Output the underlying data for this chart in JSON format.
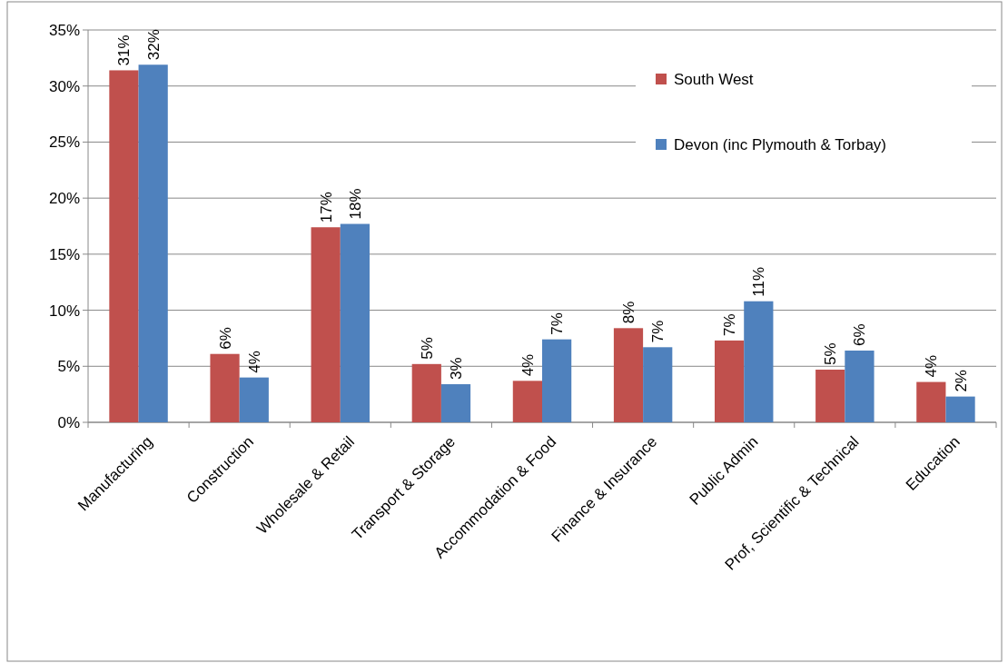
{
  "chart_data": {
    "type": "bar",
    "categories": [
      "Manufacturing",
      "Construction",
      "Wholesale & Retail",
      "Transport & Storage",
      "Accommodation & Food",
      "Finance & Insurance",
      "Public Admin",
      "Prof, Scientific & Technical",
      "Education"
    ],
    "series": [
      {
        "name": "South West",
        "color": "#c0504d",
        "values": [
          31.4,
          6.1,
          17.4,
          5.2,
          3.7,
          8.4,
          7.3,
          4.7,
          3.6
        ],
        "value_labels": [
          "31%",
          "6%",
          "17%",
          "5%",
          "4%",
          "8%",
          "7%",
          "5%",
          "4%"
        ]
      },
      {
        "name": "Devon (inc Plymouth & Torbay)",
        "color": "#4f81bd",
        "values": [
          31.9,
          4.0,
          17.7,
          3.4,
          7.4,
          6.7,
          10.8,
          6.4,
          2.3
        ],
        "value_labels": [
          "32%",
          "4%",
          "18%",
          "3%",
          "7%",
          "7%",
          "11%",
          "6%",
          "2%"
        ]
      }
    ],
    "ylim": [
      0,
      35
    ],
    "yticks": [
      {
        "value": 0,
        "label": "0%"
      },
      {
        "value": 5,
        "label": "5%"
      },
      {
        "value": 10,
        "label": "10%"
      },
      {
        "value": 15,
        "label": "15%"
      },
      {
        "value": 20,
        "label": "20%"
      },
      {
        "value": 25,
        "label": "25%"
      },
      {
        "value": 30,
        "label": "30%"
      },
      {
        "value": 35,
        "label": "35%"
      }
    ],
    "grid": "y",
    "legend": "top right"
  }
}
